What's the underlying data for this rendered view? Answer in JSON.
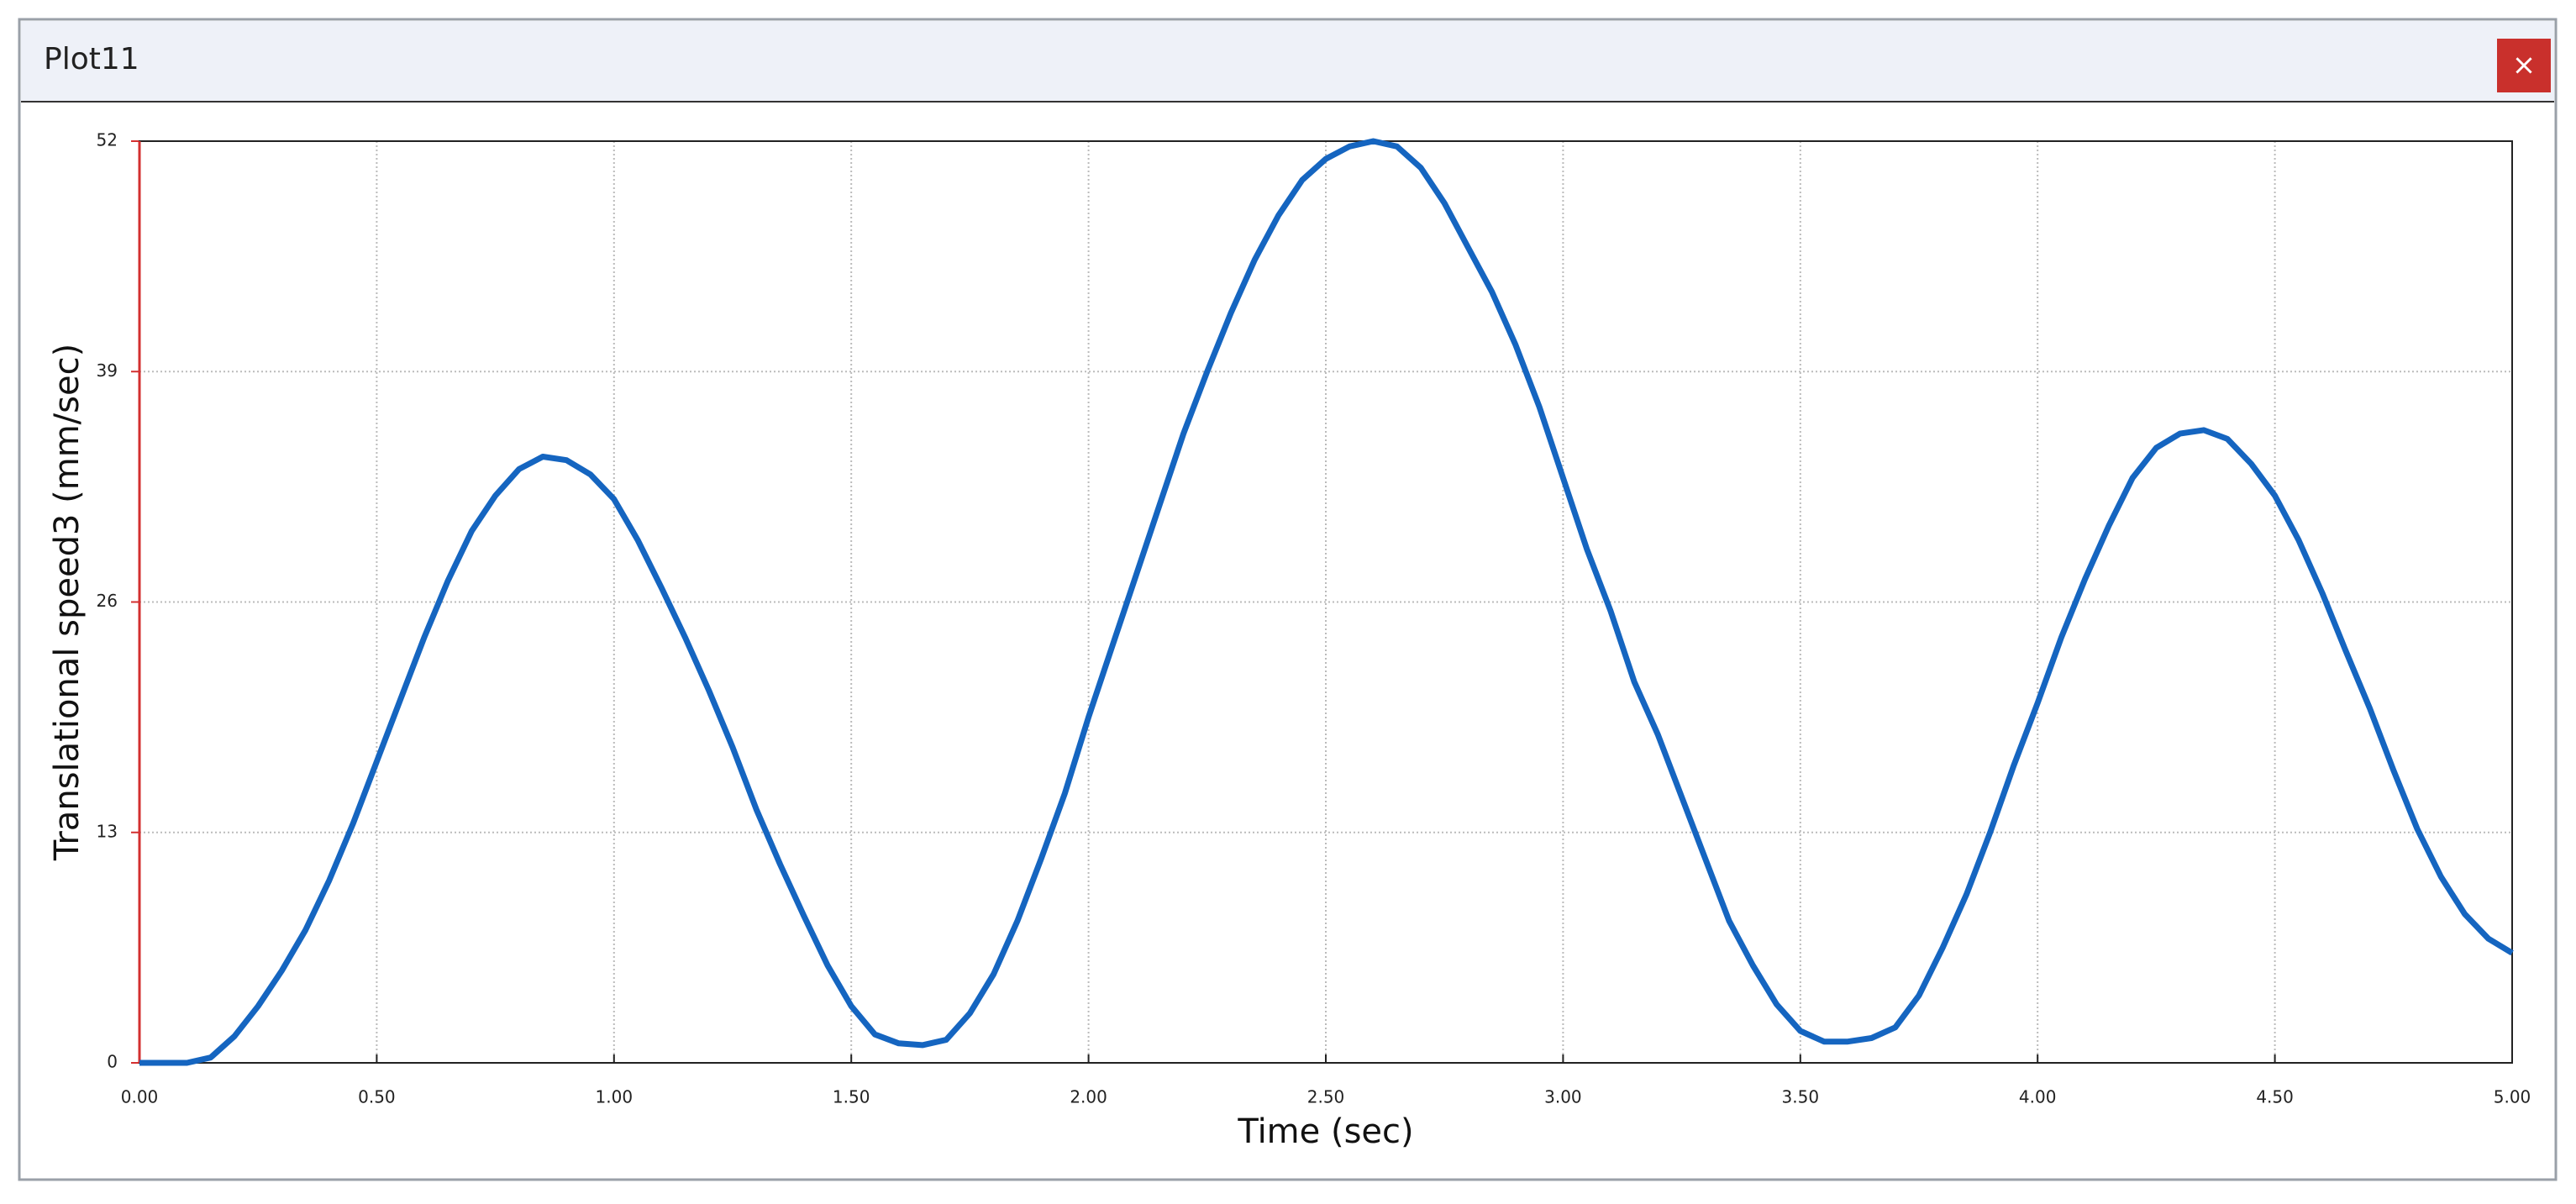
{
  "window": {
    "title": "Plot11",
    "close_label": "×"
  },
  "chart_data": {
    "type": "line",
    "x_label": "Time (sec)",
    "y_label": "Translational speed3 (mm/sec)",
    "color": "#1565c0",
    "axis_color": "#d32f2f",
    "grid": true,
    "xlim": [
      0,
      5
    ],
    "ylim": [
      0,
      52
    ],
    "xticks": [
      {
        "value": 0,
        "label": "0.00"
      },
      {
        "value": 0.5,
        "label": "0.50"
      },
      {
        "value": 1,
        "label": "1.00"
      },
      {
        "value": 1.5,
        "label": "1.50"
      },
      {
        "value": 2,
        "label": "2.00"
      },
      {
        "value": 2.5,
        "label": "2.50"
      },
      {
        "value": 3,
        "label": "3.00"
      },
      {
        "value": 3.5,
        "label": "3.50"
      },
      {
        "value": 4,
        "label": "4.00"
      },
      {
        "value": 4.5,
        "label": "4.50"
      },
      {
        "value": 5,
        "label": "5.00"
      }
    ],
    "yticks": [
      0,
      13,
      26,
      39,
      52
    ],
    "x": [
      0,
      0.05,
      0.1,
      0.15,
      0.2,
      0.25,
      0.3,
      0.35,
      0.4,
      0.45,
      0.5,
      0.55,
      0.6,
      0.65,
      0.7,
      0.75,
      0.8,
      0.85,
      0.9,
      0.95,
      1,
      1.05,
      1.1,
      1.15,
      1.2,
      1.25,
      1.3,
      1.35,
      1.4,
      1.45,
      1.5,
      1.55,
      1.6,
      1.65,
      1.7,
      1.75,
      1.8,
      1.85,
      1.9,
      1.95,
      2,
      2.05,
      2.1,
      2.15,
      2.2,
      2.25,
      2.3,
      2.35,
      2.4,
      2.45,
      2.5,
      2.55,
      2.6,
      2.65,
      2.7,
      2.75,
      2.8,
      2.85,
      2.9,
      2.95,
      3,
      3.05,
      3.1,
      3.15,
      3.2,
      3.25,
      3.3,
      3.35,
      3.4,
      3.45,
      3.5,
      3.55,
      3.6,
      3.65,
      3.7,
      3.75,
      3.8,
      3.85,
      3.9,
      3.95,
      4,
      4.05,
      4.1,
      4.15,
      4.2,
      4.25,
      4.3,
      4.35,
      4.4,
      4.45,
      4.5,
      4.55,
      4.6,
      4.65,
      4.7,
      4.75,
      4.8,
      4.85,
      4.9,
      4.95,
      5
    ],
    "values": [
      0,
      0,
      0,
      0.3,
      1.5,
      3.2,
      5.2,
      7.5,
      10.3,
      13.5,
      17,
      20.5,
      24,
      27.2,
      30,
      32,
      33.5,
      34.2,
      34,
      33.2,
      31.8,
      29.5,
      26.8,
      24,
      21,
      17.8,
      14.3,
      11.2,
      8.3,
      5.5,
      3.2,
      1.6,
      1.1,
      1,
      1.3,
      2.8,
      5,
      8,
      11.5,
      15.2,
      19.5,
      23.5,
      27.5,
      31.5,
      35.5,
      39,
      42.3,
      45.3,
      47.8,
      49.8,
      51,
      51.7,
      52,
      51.7,
      50.5,
      48.5,
      46,
      43.5,
      40.5,
      37,
      33,
      29,
      25.5,
      21.5,
      18.5,
      15,
      11.5,
      8,
      5.5,
      3.3,
      1.8,
      1.2,
      1.2,
      1.4,
      2,
      3.8,
      6.5,
      9.5,
      13,
      16.8,
      20.3,
      24,
      27.3,
      30.3,
      33,
      34.7,
      35.5,
      35.7,
      35.2,
      33.8,
      32,
      29.5,
      26.5,
      23.2,
      20,
      16.5,
      13.2,
      10.5,
      8.4,
      7,
      6.2
    ]
  }
}
